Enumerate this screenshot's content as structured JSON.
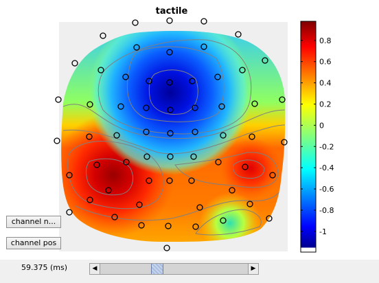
{
  "title": "tactile",
  "buttons": {
    "channel_names": "channel n...",
    "channel_pos": "channel pos"
  },
  "time_readout": "59.375 (ms)",
  "slider": {
    "value_fraction": 0.37,
    "left_arrow": "◀",
    "right_arrow": "▶"
  },
  "colorbar": {
    "ticks": [
      "0.8",
      "0.6",
      "0.4",
      "0.2",
      "0",
      "-0.2",
      "-0.4",
      "-0.6",
      "-0.8",
      "-1"
    ],
    "range": [
      -1.15,
      0.98
    ]
  },
  "colors": {
    "high": "#7f0000",
    "low": "#00008f",
    "mask": "#efefef"
  }
}
